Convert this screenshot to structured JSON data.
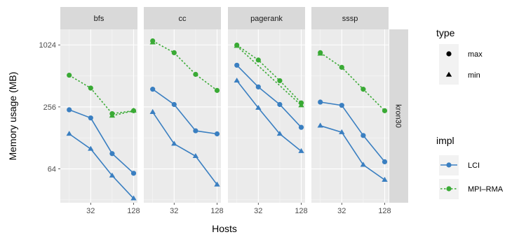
{
  "chart_data": {
    "type": "line",
    "xlabel": "Hosts",
    "ylabel": "Memory usage (MB)",
    "x_scale": "log2",
    "y_scale": "log2",
    "x_ticks": [
      32,
      128
    ],
    "y_ticks": [
      64,
      256,
      1024
    ],
    "xlim": [
      12,
      145
    ],
    "ylim": [
      30,
      1450
    ],
    "row_strip": "kron30",
    "facets": [
      {
        "name": "bfs",
        "series": [
          {
            "impl": "LCI",
            "type": "max",
            "x": [
              16,
              32,
              64,
              128
            ],
            "y": [
              240,
              200,
              90,
              58
            ]
          },
          {
            "impl": "LCI",
            "type": "min",
            "x": [
              16,
              32,
              64,
              128
            ],
            "y": [
              140,
              100,
              55,
              33
            ]
          },
          {
            "impl": "MPI-RMA",
            "type": "max",
            "x": [
              16,
              32,
              64,
              128
            ],
            "y": [
              520,
              390,
              220,
              235
            ]
          },
          {
            "impl": "MPI-RMA",
            "type": "min",
            "x": [
              64,
              128
            ],
            "y": [
              210,
              235
            ]
          }
        ]
      },
      {
        "name": "cc",
        "series": [
          {
            "impl": "LCI",
            "type": "max",
            "x": [
              16,
              32,
              64,
              128
            ],
            "y": [
              380,
              270,
              150,
              140
            ]
          },
          {
            "impl": "LCI",
            "type": "min",
            "x": [
              16,
              32,
              64,
              128
            ],
            "y": [
              228,
              112,
              85,
              45
            ]
          },
          {
            "impl": "MPI-RMA",
            "type": "max",
            "x": [
              16,
              32,
              64,
              128
            ],
            "y": [
              1120,
              860,
              530,
              370
            ]
          },
          {
            "impl": "MPI-RMA",
            "type": "min",
            "x": [
              16
            ],
            "y": [
              1080
            ]
          }
        ]
      },
      {
        "name": "pagerank",
        "series": [
          {
            "impl": "LCI",
            "type": "max",
            "x": [
              16,
              32,
              64,
              128
            ],
            "y": [
              650,
              400,
              270,
              162
            ]
          },
          {
            "impl": "LCI",
            "type": "min",
            "x": [
              16,
              32,
              64,
              128
            ],
            "y": [
              460,
              250,
              140,
              95
            ]
          },
          {
            "impl": "MPI-RMA",
            "type": "max",
            "x": [
              16,
              32,
              64,
              128
            ],
            "y": [
              1020,
              730,
              460,
              280
            ]
          },
          {
            "impl": "MPI-RMA",
            "type": "min",
            "x": [
              16,
              128
            ],
            "y": [
              1000,
              265
            ]
          }
        ]
      },
      {
        "name": "sssp",
        "series": [
          {
            "impl": "LCI",
            "type": "max",
            "x": [
              16,
              32,
              64,
              128
            ],
            "y": [
              285,
              265,
              135,
              75
            ]
          },
          {
            "impl": "LCI",
            "type": "min",
            "x": [
              16,
              32,
              64,
              128
            ],
            "y": [
              168,
              145,
              70,
              50
            ]
          },
          {
            "impl": "MPI-RMA",
            "type": "max",
            "x": [
              16,
              32,
              64,
              128
            ],
            "y": [
              860,
              620,
              380,
              235
            ]
          },
          {
            "impl": "MPI-RMA",
            "type": "min",
            "x": [
              16
            ],
            "y": [
              840
            ]
          }
        ]
      }
    ],
    "legend": {
      "placement": "right",
      "type": {
        "title": "type",
        "entries": [
          {
            "label": "max",
            "shape": "circle"
          },
          {
            "label": "min",
            "shape": "triangle"
          }
        ]
      },
      "impl": {
        "title": "impl",
        "entries": [
          {
            "label": "LCI",
            "color": "#3a7fc1",
            "dash": "solid"
          },
          {
            "label": "MPI–RMA",
            "color": "#3aaa35",
            "dash": "dotted"
          }
        ]
      }
    },
    "colors": {
      "LCI": "#3a7fc1",
      "MPI-RMA": "#3aaa35"
    },
    "grid": true,
    "panel_background": "#ebebeb",
    "strip_background": "#d9d9d9"
  }
}
